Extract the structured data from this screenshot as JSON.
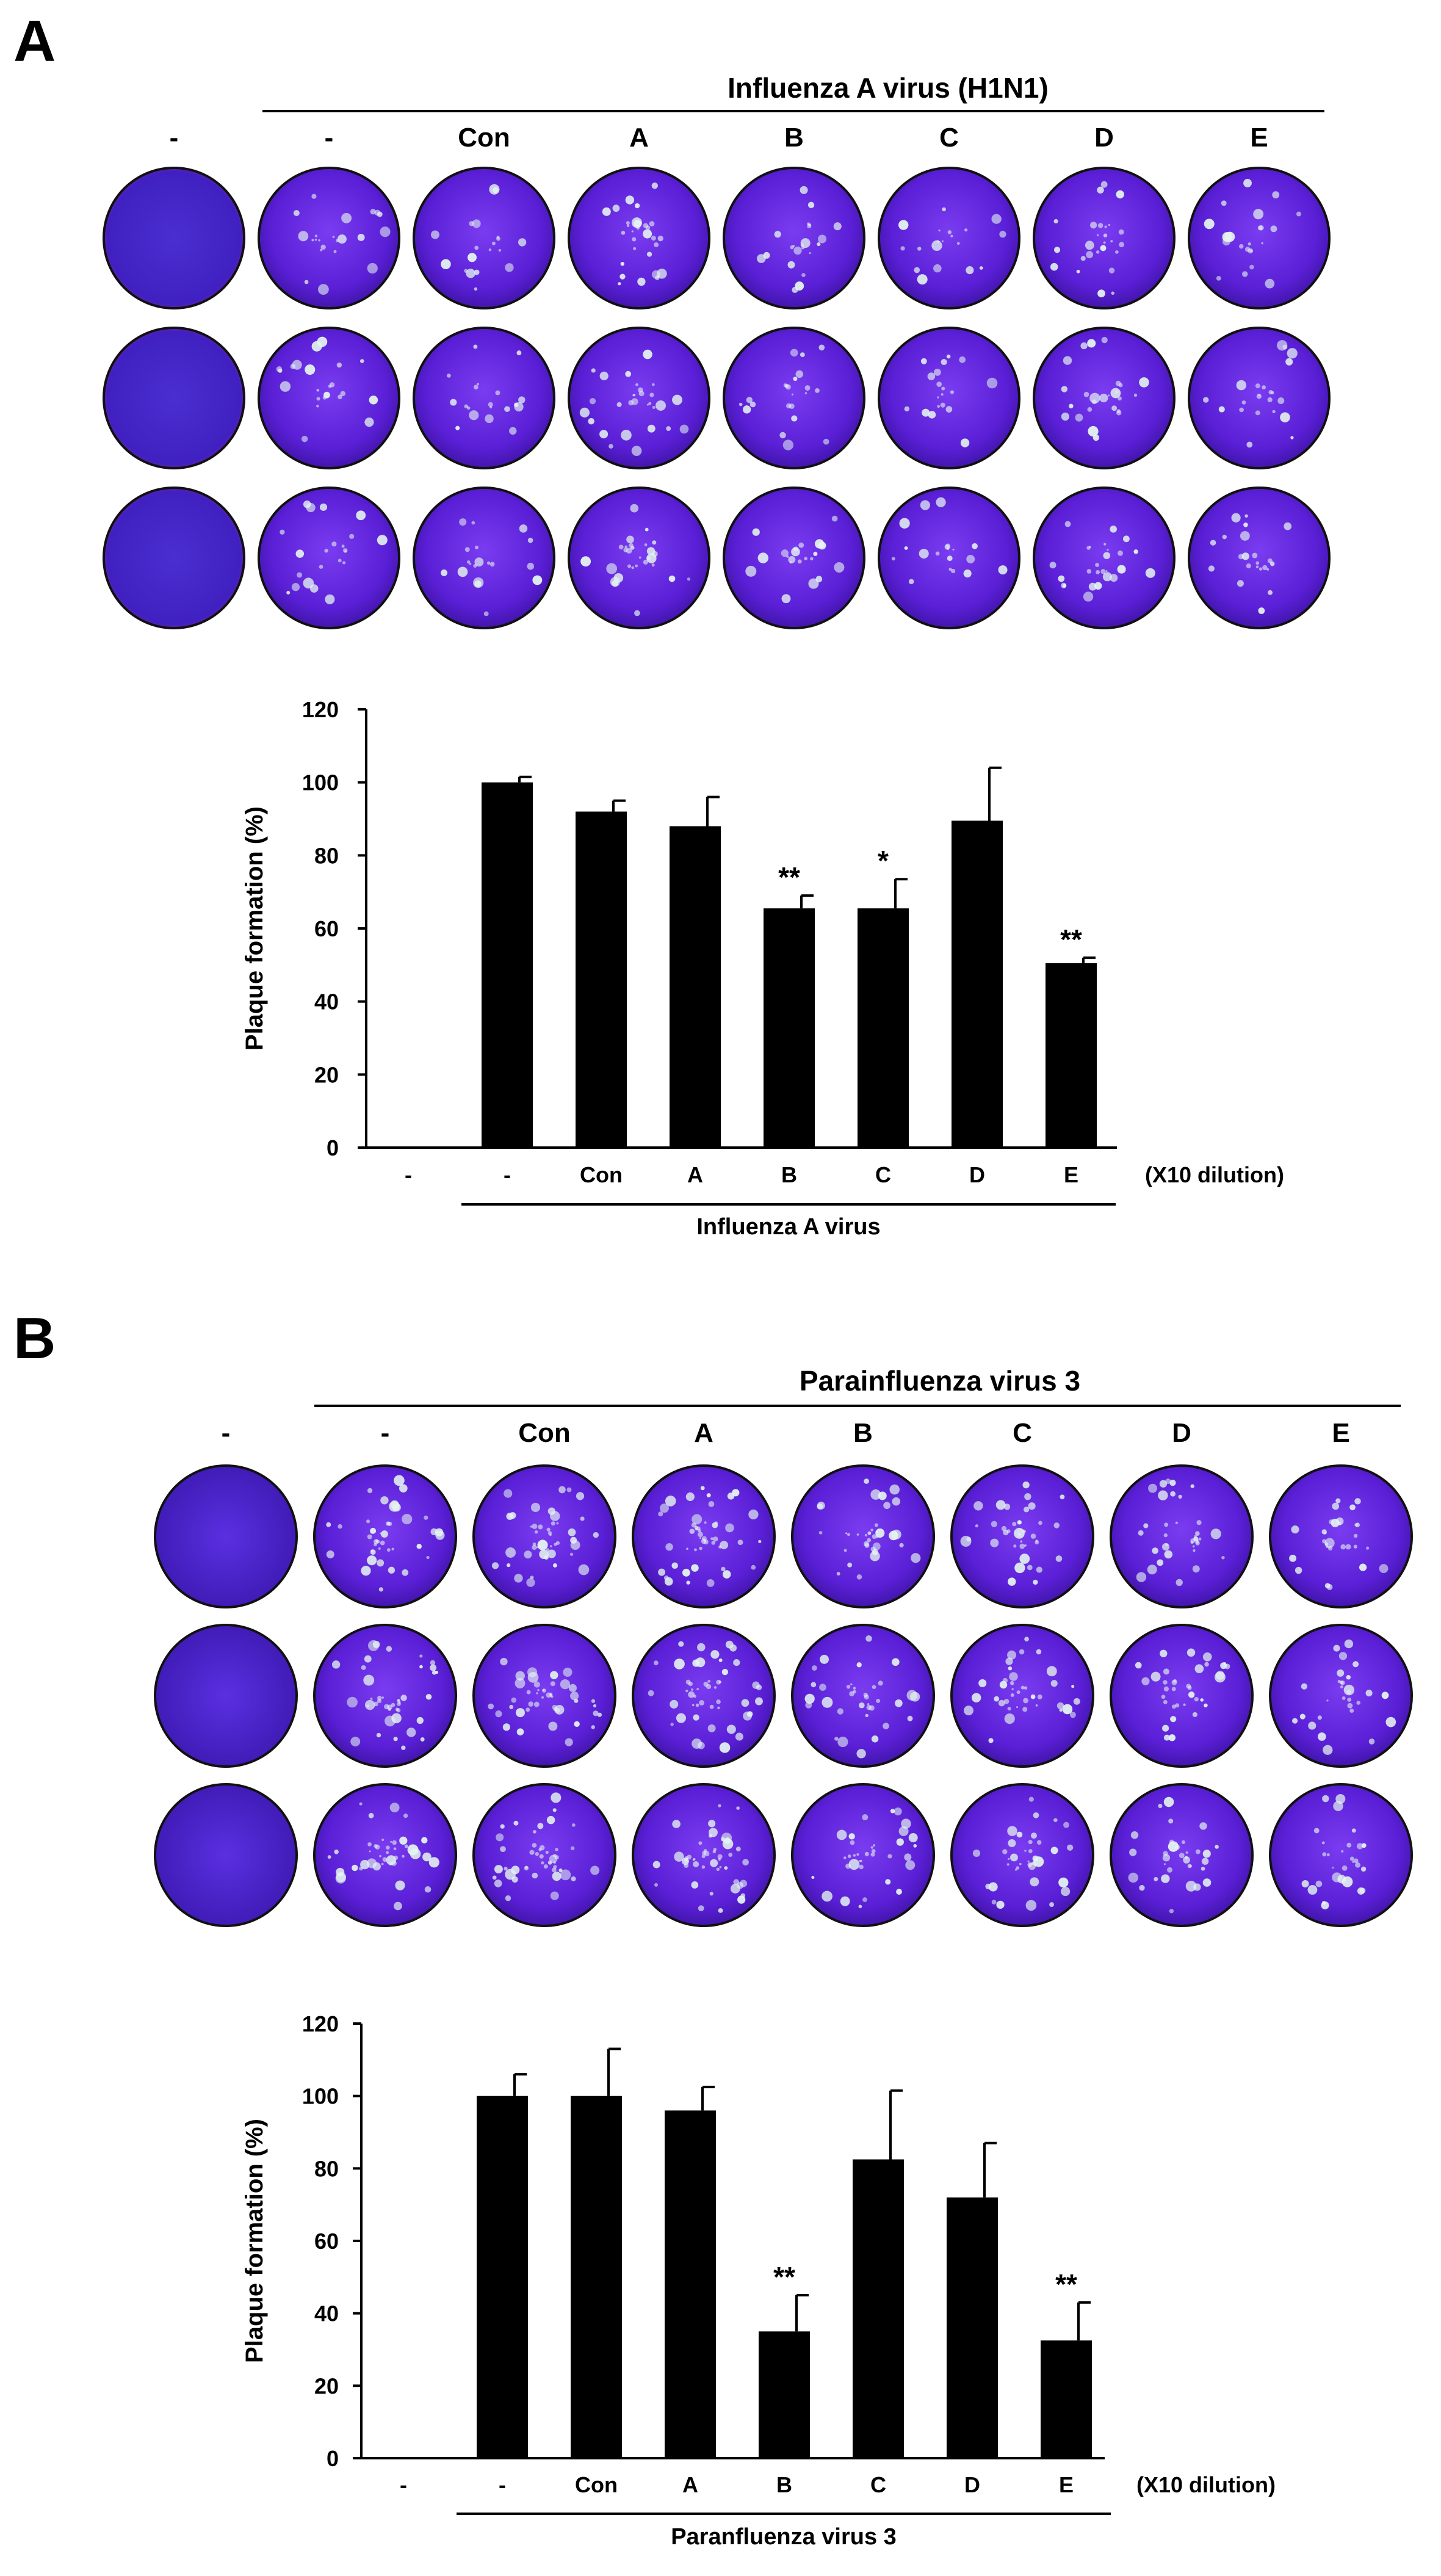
{
  "colors": {
    "dish_dark": "#3b129f",
    "dish_mid": "#5a1fd6",
    "dish_light": "#7a3cf0",
    "plaque": "#e4f4f0",
    "bar": "#000000",
    "text": "#000000"
  },
  "panels": [
    {
      "letter": "A",
      "virus_header": "Influenza A virus (H1N1)",
      "column_labels": [
        "-",
        "-",
        "Con",
        "A",
        "B",
        "C",
        "D",
        "E"
      ],
      "rows": 3,
      "control_style": "pinkish",
      "plaque_density": [
        0,
        14,
        12,
        18,
        14,
        12,
        16,
        14
      ],
      "chart_data": {
        "type": "bar",
        "title": "",
        "ylabel": "Plaque formation (%)",
        "xlabel": "Influenza A virus",
        "x_note": "(X10 dilution)",
        "ylim": [
          0,
          120
        ],
        "yticks": [
          0,
          20,
          40,
          60,
          80,
          100,
          120
        ],
        "categories": [
          "-",
          "-",
          "Con",
          "A",
          "B",
          "C",
          "D",
          "E"
        ],
        "values": [
          null,
          100,
          92,
          88,
          65.5,
          65.5,
          89.5,
          50.5
        ],
        "errors": [
          null,
          1.5,
          3,
          8,
          3.5,
          8,
          14.5,
          1.5
        ],
        "significance": [
          "",
          "",
          "",
          "",
          "**",
          "*",
          "",
          "**"
        ],
        "bracket_from": 1,
        "bracket_to": 7
      }
    },
    {
      "letter": "B",
      "virus_header": "Parainfluenza virus 3",
      "column_labels": [
        "-",
        "-",
        "Con",
        "A",
        "B",
        "C",
        "D",
        "E"
      ],
      "rows": 3,
      "control_style": "plain",
      "plaque_density": [
        0,
        26,
        28,
        30,
        22,
        24,
        22,
        18
      ],
      "chart_data": {
        "type": "bar",
        "title": "",
        "ylabel": "Plaque formation (%)",
        "xlabel": "Paranfluenza virus 3",
        "x_note": "(X10 dilution)",
        "ylim": [
          0,
          120
        ],
        "yticks": [
          0,
          20,
          40,
          60,
          80,
          100,
          120
        ],
        "categories": [
          "-",
          "-",
          "Con",
          "A",
          "B",
          "C",
          "D",
          "E"
        ],
        "values": [
          null,
          100,
          100,
          96,
          35,
          82.5,
          72,
          32.5
        ],
        "errors": [
          null,
          6,
          13,
          6.5,
          10,
          19,
          15,
          10.5
        ],
        "significance": [
          "",
          "",
          "",
          "",
          "**",
          "",
          "",
          "**"
        ],
        "bracket_from": 1,
        "bracket_to": 7
      }
    }
  ]
}
